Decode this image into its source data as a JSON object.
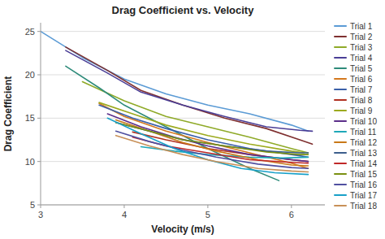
{
  "chart_data": {
    "type": "line",
    "title": "Drag Coefficient vs. Velocity",
    "xlabel": "Velocity (m/s)",
    "ylabel": "Drag Coefficient",
    "xlim": [
      3,
      6.4
    ],
    "ylim": [
      5,
      26
    ],
    "xticks": [
      3,
      4,
      5,
      6
    ],
    "yticks": [
      5,
      10,
      15,
      20,
      25
    ],
    "grid": "y",
    "legend": "right",
    "series": [
      {
        "name": "Trial 1",
        "color": "#5b9bd5",
        "x": [
          3.0,
          3.5,
          4.0,
          4.5,
          5.0,
          5.5,
          6.0,
          6.2
        ],
        "values": [
          25.0,
          22.0,
          19.5,
          17.8,
          16.5,
          15.5,
          14.2,
          13.5
        ]
      },
      {
        "name": "Trial 2",
        "color": "#7f3030",
        "x": [
          3.3,
          3.8,
          4.2,
          4.7,
          5.2,
          5.7,
          6.1,
          6.25
        ],
        "values": [
          23.2,
          20.5,
          18.2,
          16.5,
          15.0,
          13.8,
          12.5,
          12.0
        ]
      },
      {
        "name": "Trial 3",
        "color": "#8faa28",
        "x": [
          3.5,
          4.0,
          4.5,
          5.0,
          5.5,
          6.0,
          6.2
        ],
        "values": [
          19.2,
          17.0,
          15.2,
          14.0,
          12.8,
          11.5,
          11.0
        ]
      },
      {
        "name": "Trial 4",
        "color": "#4a3e96",
        "x": [
          3.3,
          3.8,
          4.2,
          4.7,
          5.2,
          5.7,
          6.1,
          6.25
        ],
        "values": [
          22.8,
          20.2,
          18.0,
          16.5,
          15.2,
          14.0,
          13.6,
          13.5
        ]
      },
      {
        "name": "Trial 5",
        "color": "#2e8b7a",
        "x": [
          3.3,
          3.7,
          4.0,
          4.5,
          5.0,
          5.5,
          5.85
        ],
        "values": [
          21.0,
          18.5,
          16.5,
          14.0,
          11.5,
          9.2,
          7.8
        ]
      },
      {
        "name": "Trial 6",
        "color": "#d4781e",
        "x": [
          3.7,
          4.0,
          4.5,
          5.0,
          5.5,
          6.0,
          6.2
        ],
        "values": [
          16.7,
          15.2,
          13.5,
          12.2,
          11.0,
          9.8,
          9.2
        ]
      },
      {
        "name": "Trial 7",
        "color": "#3a5fa8",
        "x": [
          3.7,
          4.1,
          4.5,
          5.0,
          5.5,
          6.0,
          6.2
        ],
        "values": [
          16.5,
          15.0,
          13.8,
          12.5,
          11.5,
          10.8,
          10.5
        ]
      },
      {
        "name": "Trial 8",
        "color": "#b03020",
        "x": [
          4.1,
          4.5,
          5.0,
          5.5,
          6.0,
          6.2
        ],
        "values": [
          13.4,
          12.5,
          11.5,
          10.8,
          10.2,
          10.0
        ]
      },
      {
        "name": "Trial 9",
        "color": "#9caa1e",
        "x": [
          3.7,
          4.1,
          4.5,
          5.0,
          5.5,
          6.0,
          6.15
        ],
        "values": [
          16.8,
          15.5,
          14.2,
          13.0,
          12.0,
          11.2,
          11.0
        ]
      },
      {
        "name": "Trial 10",
        "color": "#5c2e8a",
        "x": [
          3.8,
          4.2,
          4.6,
          5.0,
          5.5,
          6.0,
          6.2
        ],
        "values": [
          15.5,
          14.0,
          12.8,
          11.8,
          10.8,
          10.2,
          10.0
        ]
      },
      {
        "name": "Trial 11",
        "color": "#1ea8b8",
        "x": [
          4.2,
          4.6,
          5.0,
          5.5,
          5.9,
          6.2
        ],
        "values": [
          11.7,
          11.2,
          10.8,
          10.5,
          10.4,
          10.5
        ]
      },
      {
        "name": "Trial 12",
        "color": "#c87818",
        "x": [
          3.9,
          4.3,
          4.7,
          5.1,
          5.6,
          6.0,
          6.2
        ],
        "values": [
          14.8,
          13.5,
          12.2,
          11.2,
          10.2,
          9.6,
          9.5
        ]
      },
      {
        "name": "Trial 13",
        "color": "#3c5e8c",
        "x": [
          3.9,
          4.3,
          4.7,
          5.2,
          5.7,
          6.1,
          6.2
        ],
        "values": [
          14.5,
          13.5,
          12.5,
          11.8,
          11.2,
          11.0,
          11.0
        ]
      },
      {
        "name": "Trial 14",
        "color": "#c02828",
        "x": [
          4.1,
          4.5,
          5.0,
          5.5,
          6.0,
          6.2
        ],
        "values": [
          12.8,
          11.8,
          11.0,
          10.2,
          9.9,
          9.8
        ]
      },
      {
        "name": "Trial 15",
        "color": "#7a9010",
        "x": [
          3.9,
          4.3,
          4.7,
          5.2,
          5.7,
          6.1,
          6.2
        ],
        "values": [
          14.5,
          13.5,
          12.5,
          11.8,
          11.1,
          10.8,
          10.8
        ]
      },
      {
        "name": "Trial 16",
        "color": "#5050a0",
        "x": [
          3.9,
          4.3,
          4.7,
          5.1,
          5.6,
          6.0,
          6.2
        ],
        "values": [
          13.5,
          12.3,
          11.3,
          10.5,
          9.7,
          9.3,
          9.2
        ]
      },
      {
        "name": "Trial 17",
        "color": "#18a0c8",
        "x": [
          3.8,
          4.2,
          4.6,
          5.0,
          5.4,
          5.8,
          6.2
        ],
        "values": [
          15.0,
          13.2,
          11.5,
          10.2,
          9.2,
          8.7,
          8.5
        ]
      },
      {
        "name": "Trial 18",
        "color": "#c89058",
        "x": [
          3.9,
          4.3,
          4.7,
          5.1,
          5.6,
          6.0,
          6.2
        ],
        "values": [
          13.0,
          11.8,
          10.8,
          10.0,
          9.2,
          8.9,
          8.8
        ]
      }
    ]
  }
}
